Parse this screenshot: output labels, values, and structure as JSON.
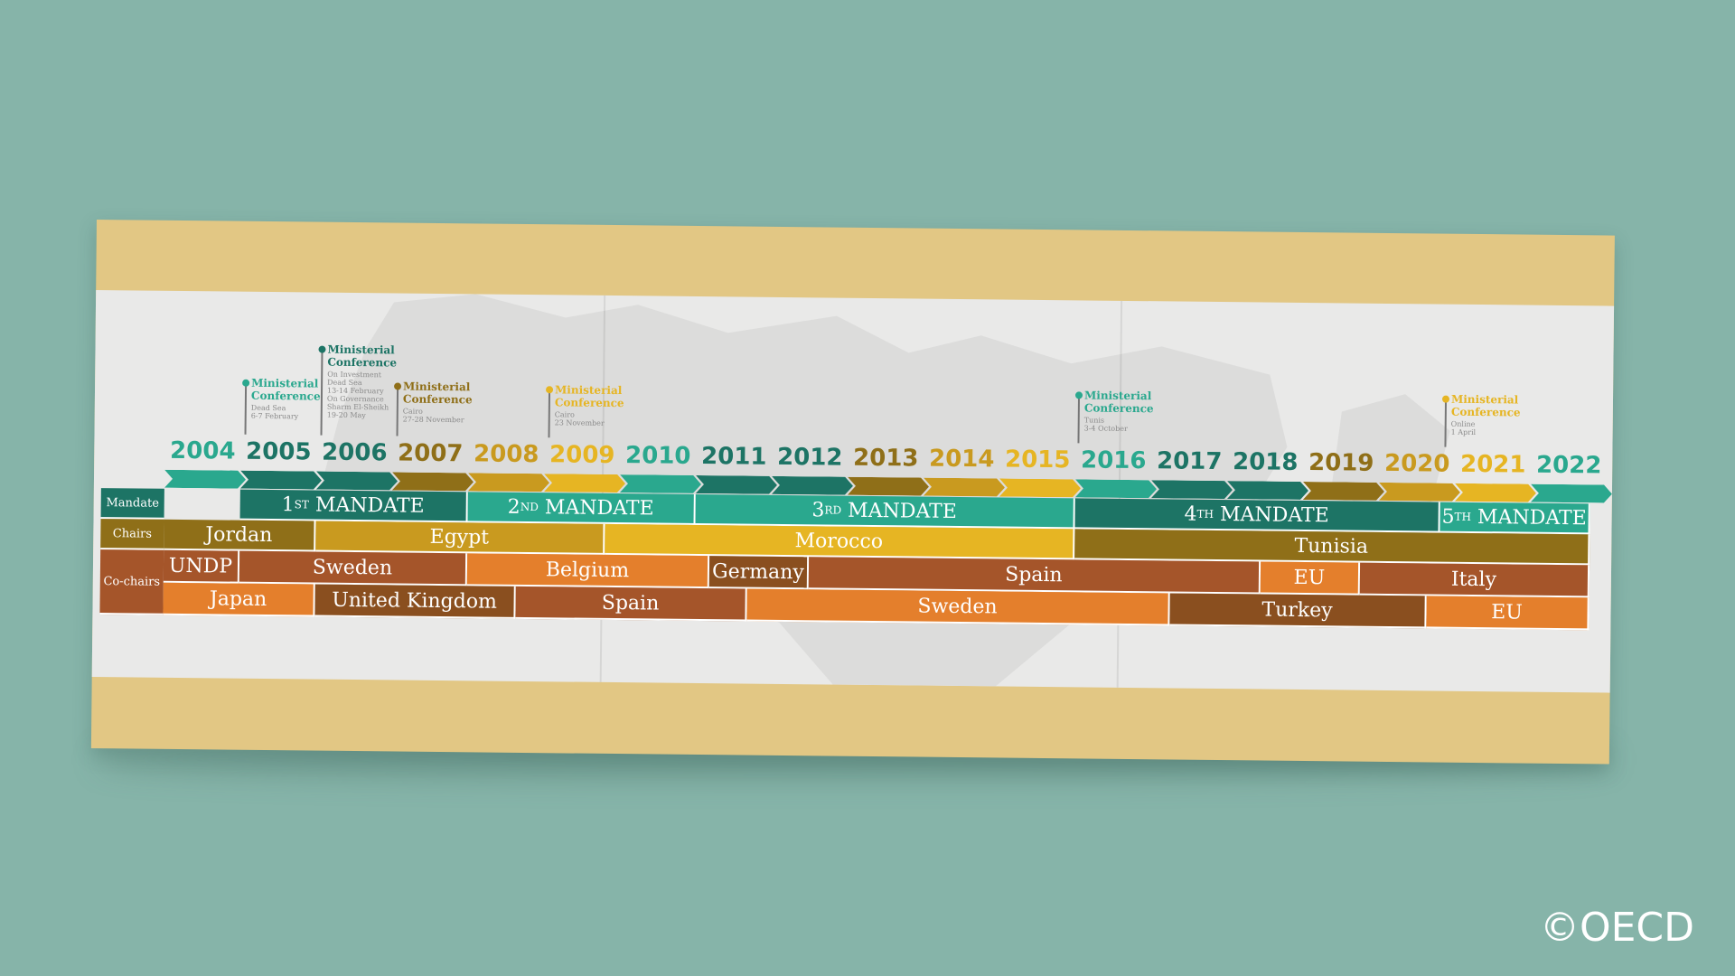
{
  "copyright": "©OECD",
  "colors": {
    "teal": "#2aa88e",
    "dark_teal": "#1d7465",
    "olive": "#8f6f18",
    "gold": "#c99a1f",
    "yellow": "#e6b523",
    "rust": "#a5552a",
    "orange": "#e47f2c"
  },
  "years": [
    "2004",
    "2005",
    "2006",
    "2007",
    "2008",
    "2009",
    "2010",
    "2011",
    "2012",
    "2013",
    "2014",
    "2015",
    "2016",
    "2017",
    "2018",
    "2019",
    "2020",
    "2021",
    "2022"
  ],
  "row_labels": {
    "mandate": "Mandate",
    "chairs": "Chairs",
    "cochairs": "Co-chairs"
  },
  "mandates": [
    {
      "ord": "1",
      "sup": "ST",
      "text": "MANDATE"
    },
    {
      "ord": "2",
      "sup": "ND",
      "text": "MANDATE"
    },
    {
      "ord": "3",
      "sup": "RD",
      "text": "MANDATE"
    },
    {
      "ord": "4",
      "sup": "TH",
      "text": "MANDATE"
    },
    {
      "ord": "5",
      "sup": "TH",
      "text": "MANDATE"
    }
  ],
  "chairs": [
    "Jordan",
    "Egypt",
    "Morocco",
    "Tunisia"
  ],
  "cochairs_row1": [
    "UNDP",
    "Sweden",
    "Belgium",
    "Germany",
    "Spain",
    "EU",
    "Italy"
  ],
  "cochairs_row2": [
    "Japan",
    "United Kingdom",
    "Spain",
    "Sweden",
    "Turkey",
    "EU"
  ],
  "conferences": [
    {
      "title1": "Ministerial",
      "title2": "Conference",
      "details": [
        "Dead Sea",
        "6-7 February"
      ]
    },
    {
      "title1": "Ministerial",
      "title2": "Conference",
      "details": [
        "On Investment",
        "Dead Sea",
        "13-14 February",
        "On Governance",
        "Sharm El-Sheikh",
        "19-20 May"
      ]
    },
    {
      "title1": "Ministerial",
      "title2": "Conference",
      "details": [
        "Cairo",
        "27-28 November"
      ]
    },
    {
      "title1": "Ministerial",
      "title2": "Conference",
      "details": [
        "Cairo",
        "23 November"
      ]
    },
    {
      "title1": "Ministerial",
      "title2": "Conference",
      "details": [
        "Tunis",
        "3-4 October"
      ]
    },
    {
      "title1": "Ministerial",
      "title2": "Conference",
      "details": [
        "Online",
        "1 April"
      ]
    }
  ]
}
